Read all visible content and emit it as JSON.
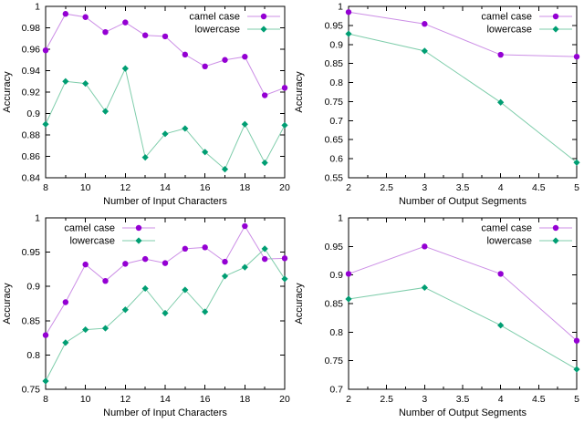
{
  "figure": {
    "colors": {
      "background": "#ffffff",
      "axis": "#000000",
      "text": "#000000",
      "camel_line": "#cc8fe6",
      "camel_point": "#9400d3",
      "lower_line": "#7fcdab",
      "lower_point": "#009e73"
    }
  },
  "chart_data": [
    {
      "type": "line",
      "position": "top-left",
      "title": "",
      "xlabel": "Number of Input Characters",
      "ylabel": "Accuracy",
      "x": [
        8,
        9,
        10,
        11,
        12,
        13,
        14,
        15,
        16,
        17,
        18,
        19,
        20
      ],
      "series": [
        {
          "name": "camel case",
          "marker": "circle",
          "color_key": "camel",
          "values": [
            0.959,
            0.993,
            0.99,
            0.976,
            0.985,
            0.973,
            0.972,
            0.955,
            0.944,
            0.95,
            0.953,
            0.917,
            0.924
          ]
        },
        {
          "name": "lowercase",
          "marker": "diamond",
          "color_key": "lower",
          "values": [
            0.89,
            0.93,
            0.928,
            0.902,
            0.942,
            0.859,
            0.881,
            0.886,
            0.864,
            0.848,
            0.89,
            0.854,
            0.889
          ]
        }
      ],
      "xlim": [
        8,
        20
      ],
      "ylim": [
        0.84,
        1
      ],
      "xticks": [
        8,
        10,
        12,
        14,
        16,
        18,
        20
      ],
      "xtick_labels": [
        "8",
        "10",
        "12",
        "14",
        "16",
        "18",
        "20"
      ],
      "xminor": [
        9,
        11,
        13,
        15,
        17,
        19
      ],
      "yticks": [
        0.84,
        0.86,
        0.88,
        0.9,
        0.92,
        0.94,
        0.96,
        0.98,
        1
      ],
      "ytick_labels": [
        "0.84",
        "0.86",
        "0.88",
        "0.9",
        "0.92",
        "0.94",
        "0.96",
        "0.98",
        "1"
      ],
      "legend_position": "top-right",
      "grid": false
    },
    {
      "type": "line",
      "position": "top-right",
      "title": "",
      "xlabel": "Number of Output Segments",
      "ylabel": "Accuracy",
      "x": [
        2,
        3,
        4,
        5
      ],
      "series": [
        {
          "name": "camel case",
          "marker": "circle",
          "color_key": "camel",
          "values": [
            0.985,
            0.954,
            0.873,
            0.868
          ]
        },
        {
          "name": "lowercase",
          "marker": "diamond",
          "color_key": "lower",
          "values": [
            0.928,
            0.883,
            0.748,
            0.59
          ]
        }
      ],
      "xlim": [
        2,
        5
      ],
      "ylim": [
        0.55,
        1
      ],
      "xticks": [
        2,
        2.5,
        3,
        3.5,
        4,
        4.5,
        5
      ],
      "xtick_labels": [
        "2",
        "2.5",
        "3",
        "3.5",
        "4",
        "4.5",
        "5"
      ],
      "xminor": [
        2.25,
        2.75,
        3.25,
        3.75,
        4.25,
        4.75
      ],
      "yticks": [
        0.55,
        0.6,
        0.65,
        0.7,
        0.75,
        0.8,
        0.85,
        0.9,
        0.95,
        1
      ],
      "ytick_labels": [
        "0.55",
        "0.6",
        "0.65",
        "0.7",
        "0.75",
        "0.8",
        "0.85",
        "0.9",
        "0.95",
        "1"
      ],
      "legend_position": "top-right",
      "grid": false
    },
    {
      "type": "line",
      "position": "bottom-left",
      "title": "",
      "xlabel": "Number of Input Characters",
      "ylabel": "Accuracy",
      "x": [
        8,
        9,
        10,
        11,
        12,
        13,
        14,
        15,
        16,
        17,
        18,
        19,
        20
      ],
      "series": [
        {
          "name": "camel case",
          "marker": "circle",
          "color_key": "camel",
          "values": [
            0.829,
            0.877,
            0.932,
            0.908,
            0.933,
            0.94,
            0.934,
            0.955,
            0.957,
            0.936,
            0.988,
            0.94,
            0.941
          ]
        },
        {
          "name": "lowercase",
          "marker": "diamond",
          "color_key": "lower",
          "values": [
            0.762,
            0.818,
            0.837,
            0.839,
            0.866,
            0.897,
            0.861,
            0.895,
            0.863,
            0.915,
            0.928,
            0.955,
            0.911
          ]
        }
      ],
      "xlim": [
        8,
        20
      ],
      "ylim": [
        0.75,
        1
      ],
      "xticks": [
        8,
        10,
        12,
        14,
        16,
        18,
        20
      ],
      "xtick_labels": [
        "8",
        "10",
        "12",
        "14",
        "16",
        "18",
        "20"
      ],
      "xminor": [
        9,
        11,
        13,
        15,
        17,
        19
      ],
      "yticks": [
        0.75,
        0.8,
        0.85,
        0.9,
        0.95,
        1
      ],
      "ytick_labels": [
        "0.75",
        "0.8",
        "0.85",
        "0.9",
        "0.95",
        "1"
      ],
      "legend_position": "top-left",
      "grid": false
    },
    {
      "type": "line",
      "position": "bottom-right",
      "title": "",
      "xlabel": "Number of Output Segments",
      "ylabel": "Accuracy",
      "x": [
        2,
        3,
        4,
        5
      ],
      "series": [
        {
          "name": "camel case",
          "marker": "circle",
          "color_key": "camel",
          "values": [
            0.902,
            0.95,
            0.902,
            0.785
          ]
        },
        {
          "name": "lowercase",
          "marker": "diamond",
          "color_key": "lower",
          "values": [
            0.858,
            0.878,
            0.812,
            0.735
          ]
        }
      ],
      "xlim": [
        2,
        5
      ],
      "ylim": [
        0.7,
        1
      ],
      "xticks": [
        2,
        2.5,
        3,
        3.5,
        4,
        4.5,
        5
      ],
      "xtick_labels": [
        "2",
        "2.5",
        "3",
        "3.5",
        "4",
        "4.5",
        "5"
      ],
      "xminor": [
        2.25,
        2.75,
        3.25,
        3.75,
        4.25,
        4.75
      ],
      "yticks": [
        0.7,
        0.75,
        0.8,
        0.85,
        0.9,
        0.95,
        1
      ],
      "ytick_labels": [
        "0.7",
        "0.75",
        "0.8",
        "0.85",
        "0.9",
        "0.95",
        "1"
      ],
      "legend_position": "top-right",
      "grid": false
    }
  ]
}
